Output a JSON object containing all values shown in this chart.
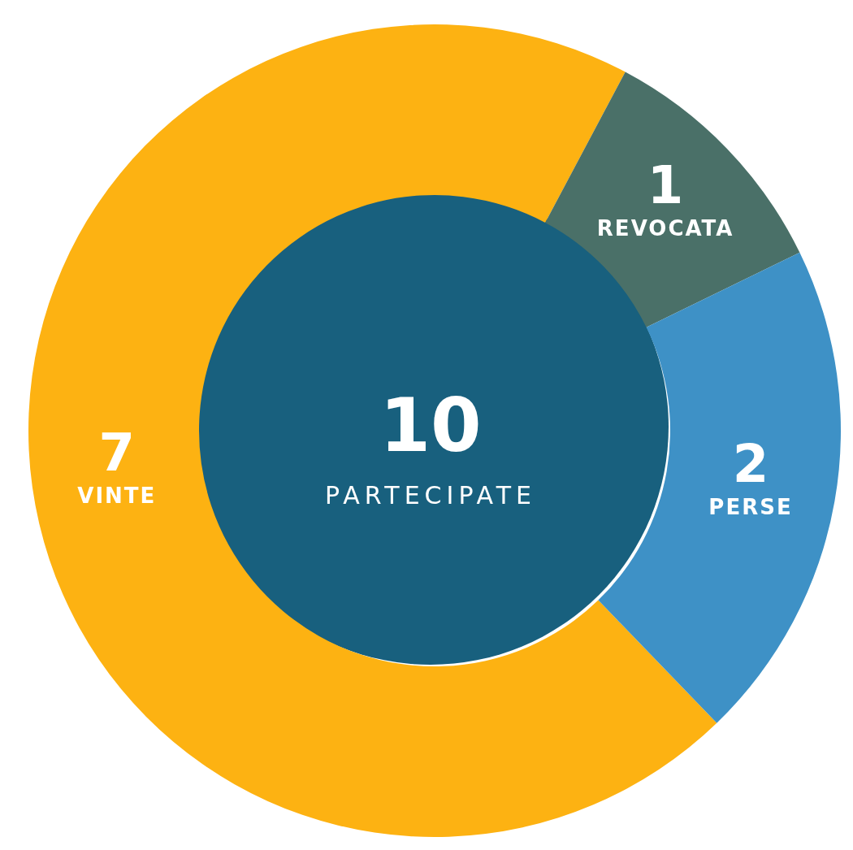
{
  "chart_data": {
    "type": "donut",
    "categories": [
      "VINTE",
      "REVOCATA",
      "PERSE"
    ],
    "values": [
      7,
      1,
      2
    ],
    "colors": [
      "#fdb212",
      "#4a7068",
      "#3e91c6"
    ],
    "data_labels": true,
    "annotations": [
      "10",
      "PARTECIPATE"
    ]
  }
}
